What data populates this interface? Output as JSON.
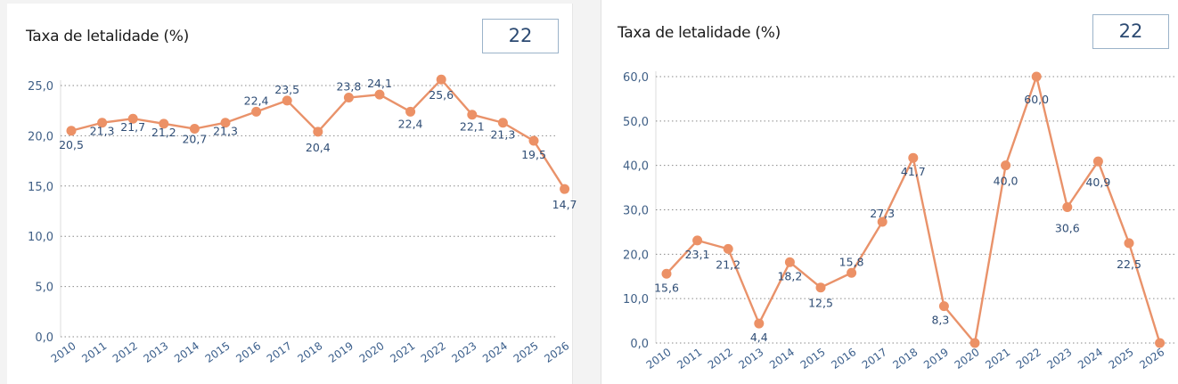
{
  "panels": [
    {
      "title": "Taxa de letalidade (%)",
      "kpi_value": "22"
    },
    {
      "title": "Taxa de letalidade (%)",
      "kpi_value": "22"
    }
  ],
  "colors": {
    "series": "#e9926a",
    "marker": "#ec9166",
    "axis_text": "#3f5f86",
    "data_label": "#2f4d75",
    "kpi_border": "#9bb3c9"
  },
  "chart_data": [
    {
      "type": "line",
      "title": "Taxa de letalidade (%)",
      "xlabel": "",
      "ylabel": "",
      "categories": [
        "2010",
        "2011",
        "2012",
        "2013",
        "2014",
        "2015",
        "2016",
        "2017",
        "2018",
        "2019",
        "2020",
        "2021",
        "2022",
        "2023",
        "2024",
        "2025",
        "2026"
      ],
      "series": [
        {
          "name": "Taxa de letalidade (%)",
          "values": [
            20.5,
            21.3,
            21.7,
            21.2,
            20.7,
            21.3,
            22.4,
            23.5,
            20.4,
            23.8,
            24.1,
            22.4,
            25.6,
            22.1,
            21.3,
            19.5,
            14.7
          ]
        }
      ],
      "data_labels": [
        "20,5",
        "21,3",
        "21,7",
        "21,2",
        "20,7",
        "21,3",
        "22,4",
        "23,5",
        "20,4",
        "23,8",
        "24,1",
        "22,4",
        "25,6",
        "22,1",
        "21,3",
        "19,5",
        "14,7"
      ],
      "ylim": [
        0,
        25
      ],
      "yticks": [
        0,
        5,
        10,
        15,
        20,
        25
      ],
      "ytick_labels": [
        "0,0",
        "5,0",
        "10,0",
        "15,0",
        "20,0",
        "25,0"
      ],
      "grid": true,
      "legend": "none"
    },
    {
      "type": "line",
      "title": "Taxa de letalidade (%)",
      "xlabel": "",
      "ylabel": "",
      "categories": [
        "2010",
        "2011",
        "2012",
        "2013",
        "2014",
        "2015",
        "2016",
        "2017",
        "2018",
        "2019",
        "2020",
        "2021",
        "2022",
        "2023",
        "2024",
        "2025",
        "2026"
      ],
      "series": [
        {
          "name": "Taxa de letalidade (%)",
          "values": [
            15.6,
            23.1,
            21.2,
            4.4,
            18.2,
            12.5,
            15.8,
            27.3,
            41.7,
            8.3,
            0.0,
            40.0,
            60.0,
            30.6,
            40.9,
            22.5,
            0.0
          ]
        }
      ],
      "data_labels": [
        "15,6",
        "23,1",
        "21,2",
        "4,4",
        "18,2",
        "12,5",
        "15,8",
        "27,3",
        "41,7",
        "8,3",
        "",
        "40,0",
        "60,0",
        "30,6",
        "40,9",
        "22,5",
        ""
      ],
      "ylim": [
        0,
        60
      ],
      "yticks": [
        0,
        10,
        20,
        30,
        40,
        50,
        60
      ],
      "ytick_labels": [
        "0,0",
        "10,0",
        "20,0",
        "30,0",
        "40,0",
        "50,0",
        "60,0"
      ],
      "grid": true,
      "legend": "none"
    }
  ]
}
